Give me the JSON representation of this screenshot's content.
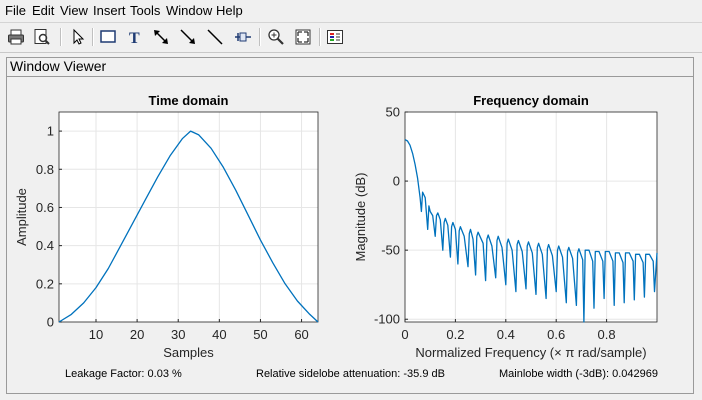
{
  "menu": [
    "File",
    "Edit",
    "View",
    "Insert",
    "Tools",
    "Window",
    "Help"
  ],
  "toolbar": {
    "buttons": [
      {
        "name": "print-button",
        "icon": "printer-icon"
      },
      {
        "name": "print-preview-button",
        "icon": "print-preview-icon"
      },
      {
        "name": "select-button",
        "icon": "arrow-pointer-icon"
      },
      {
        "name": "insert-rectangle-button",
        "icon": "rectangle-icon"
      },
      {
        "name": "insert-text-button",
        "icon": "text-icon"
      },
      {
        "name": "insert-double-arrow-button",
        "icon": "double-arrow-icon"
      },
      {
        "name": "insert-arrow-button",
        "icon": "arrow-icon"
      },
      {
        "name": "insert-line-button",
        "icon": "line-icon"
      },
      {
        "name": "pin-button",
        "icon": "pin-icon"
      },
      {
        "name": "zoom-in-button",
        "icon": "zoom-in-icon"
      },
      {
        "name": "full-view-button",
        "icon": "full-view-icon"
      },
      {
        "name": "legend-button",
        "icon": "legend-icon"
      }
    ]
  },
  "panel": {
    "title": "Window Viewer"
  },
  "status": {
    "leakage": "Leakage Factor: 0.03 %",
    "sidelobe": "Relative sidelobe attenuation: -35.9 dB",
    "mainlobe": "Mainlobe width (-3dB): 0.042969"
  },
  "colors": {
    "line": "#0072bd",
    "grid": "#e6e6e6",
    "axis": "#262626"
  },
  "chart_data": [
    {
      "type": "line",
      "title": "Time domain",
      "xlabel": "Samples",
      "ylabel": "Amplitude",
      "xlim": [
        1,
        64
      ],
      "ylim": [
        0,
        1.1
      ],
      "xticks": [
        10,
        20,
        30,
        40,
        50,
        60
      ],
      "yticks": [
        0,
        0.2,
        0.4,
        0.6,
        0.8,
        1
      ],
      "xtick_labels": [
        "10",
        "20",
        "30",
        "40",
        "50",
        "60"
      ],
      "ytick_labels": [
        "0",
        "0.2",
        "0.4",
        "0.6",
        "0.8",
        "1"
      ],
      "grid": true,
      "series": [
        {
          "x": [
            1,
            4,
            7,
            10,
            13,
            16,
            19,
            22,
            25,
            28,
            31,
            33,
            35,
            38,
            41,
            44,
            47,
            50,
            53,
            56,
            59,
            62,
            64
          ],
          "y": [
            0.0,
            0.04,
            0.1,
            0.18,
            0.28,
            0.4,
            0.52,
            0.64,
            0.76,
            0.87,
            0.96,
            1.0,
            0.98,
            0.91,
            0.81,
            0.69,
            0.56,
            0.43,
            0.31,
            0.2,
            0.11,
            0.04,
            0.0
          ]
        }
      ]
    },
    {
      "type": "line",
      "title": "Frequency domain",
      "xlabel": "Normalized Frequency  (× π rad/sample)",
      "ylabel": "Magnitude (dB)",
      "xlim": [
        0,
        1
      ],
      "ylim": [
        -102,
        50
      ],
      "xticks": [
        0,
        0.2,
        0.4,
        0.6,
        0.8
      ],
      "yticks": [
        -100,
        -50,
        0,
        50
      ],
      "xtick_labels": [
        "0",
        "0.2",
        "0.4",
        "0.6",
        "0.8"
      ],
      "ytick_labels": [
        "-100",
        "-50",
        "0",
        "50"
      ],
      "grid": true,
      "series": [
        {
          "x": [
            0,
            0.01,
            0.02,
            0.03,
            0.04,
            0.05,
            0.06,
            0.065,
            0.07,
            0.08,
            0.09,
            0.095,
            0.1,
            0.11,
            0.12,
            0.125,
            0.13,
            0.14,
            0.15,
            0.155,
            0.16,
            0.17,
            0.18,
            0.185,
            0.19,
            0.2,
            0.21,
            0.215,
            0.22,
            0.235,
            0.25,
            0.255,
            0.26,
            0.27,
            0.28,
            0.285,
            0.29,
            0.31,
            0.32,
            0.325,
            0.33,
            0.345,
            0.36,
            0.365,
            0.37,
            0.385,
            0.4,
            0.405,
            0.41,
            0.425,
            0.44,
            0.445,
            0.45,
            0.465,
            0.48,
            0.485,
            0.49,
            0.505,
            0.52,
            0.525,
            0.53,
            0.545,
            0.56,
            0.565,
            0.57,
            0.585,
            0.6,
            0.605,
            0.61,
            0.625,
            0.64,
            0.645,
            0.65,
            0.665,
            0.68,
            0.685,
            0.69,
            0.705,
            0.71,
            0.715,
            0.73,
            0.745,
            0.75,
            0.755,
            0.77,
            0.785,
            0.79,
            0.795,
            0.81,
            0.825,
            0.83,
            0.835,
            0.85,
            0.865,
            0.87,
            0.875,
            0.89,
            0.905,
            0.91,
            0.915,
            0.93,
            0.945,
            0.95,
            0.955,
            0.97,
            0.985,
            0.99,
            1.0
          ],
          "y": [
            30,
            29,
            26,
            20,
            12,
            2,
            -12,
            -22,
            -8,
            -12,
            -35,
            -18,
            -22,
            -25,
            -40,
            -25,
            -23,
            -28,
            -50,
            -30,
            -27,
            -32,
            -55,
            -33,
            -30,
            -35,
            -60,
            -36,
            -33,
            -40,
            -62,
            -38,
            -35,
            -42,
            -68,
            -40,
            -37,
            -45,
            -72,
            -42,
            -39,
            -47,
            -70,
            -43,
            -40,
            -48,
            -75,
            -45,
            -42,
            -50,
            -80,
            -46,
            -43,
            -51,
            -78,
            -47,
            -44,
            -52,
            -82,
            -48,
            -45,
            -53,
            -85,
            -49,
            -46,
            -54,
            -80,
            -50,
            -47,
            -55,
            -88,
            -51,
            -48,
            -56,
            -90,
            -52,
            -49,
            -57,
            -102,
            -50,
            -50,
            -58,
            -92,
            -51,
            -51,
            -58,
            -85,
            -51,
            -51,
            -58,
            -90,
            -52,
            -52,
            -59,
            -88,
            -52,
            -52,
            -58,
            -86,
            -53,
            -53,
            -59,
            -84,
            -53,
            -53,
            -58,
            -80,
            -52
          ]
        }
      ]
    }
  ]
}
